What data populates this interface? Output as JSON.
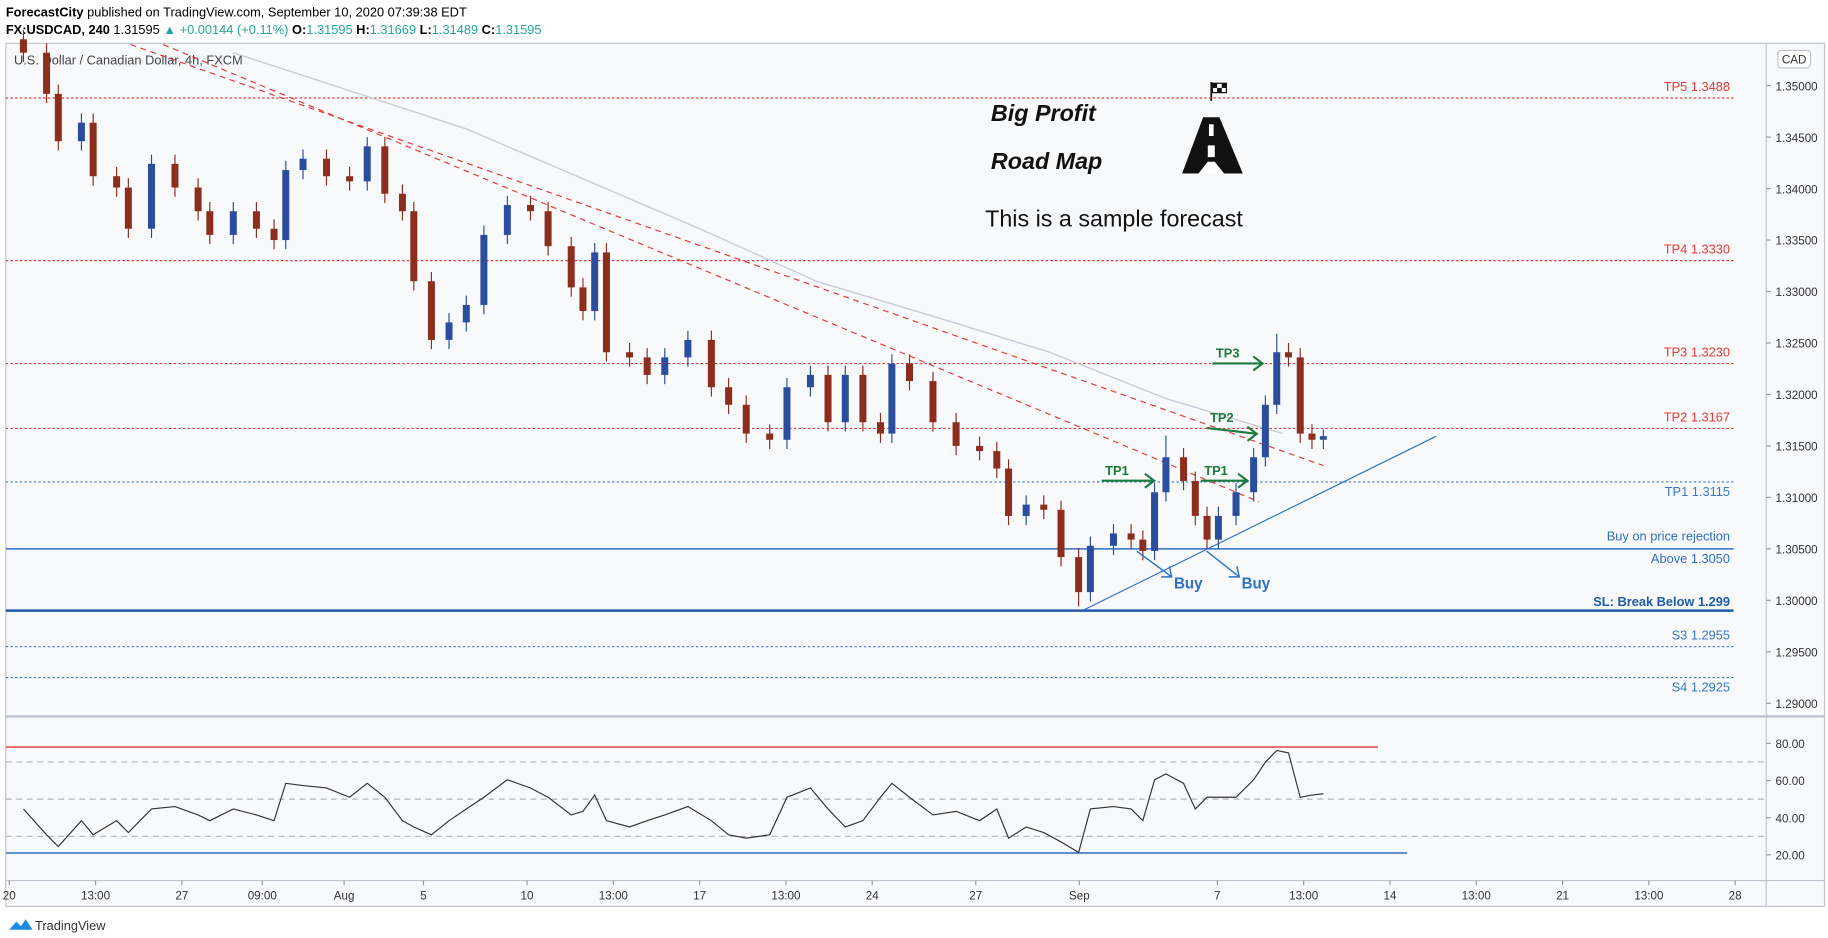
{
  "header": {
    "author": "ForecastCity",
    "published": "published on TradingView.com, September 10, 2020 07:39:38 EDT",
    "symbol": "FX:USDCAD, 240",
    "price": "1.31595",
    "change": "▲ +0.00144 (+0.11%)",
    "o_label": "O:",
    "o": "1.31595",
    "h_label": "H:",
    "h": "1.31669",
    "l_label": "L:",
    "l": "1.31489",
    "c_label": "C:",
    "c": "1.31595"
  },
  "footer": "TradingView",
  "chart_data": [
    {
      "type": "candlestick",
      "title": "U.S. Dollar / Canadian Dollar, 4h, FXCM",
      "currency": "CAD",
      "up_color": "#2b4d9e",
      "down_color": "#8c2d1e",
      "x": [
        0.41,
        1.08,
        1.42,
        2.09,
        2.43,
        3.11,
        3.45,
        4.12,
        4.8,
        5.47,
        5.81,
        6.49,
        7.16,
        7.67,
        8.01,
        8.51,
        9.19,
        9.86,
        10.37,
        10.88,
        11.39,
        11.72,
        12.23,
        12.74,
        13.24,
        13.75,
        14.43,
        15.1,
        15.61,
        16.28,
        16.62,
        16.96,
        17.3,
        17.97,
        18.48,
        18.99,
        19.66,
        20.34,
        20.84,
        21.35,
        22.03,
        22.53,
        23.21,
        23.72,
        24.22,
        24.73,
        25.24,
        25.57,
        26.08,
        26.76,
        27.43,
        28.11,
        28.61,
        28.95,
        29.46,
        29.97,
        30.47,
        30.98,
        31.32,
        31.99,
        32.5,
        32.84,
        33.18,
        33.51,
        34.02,
        34.36,
        34.7,
        35.03,
        35.54,
        36.05,
        36.39,
        36.72,
        37.06,
        37.4,
        37.74,
        38.07
      ],
      "open": [
        1.3545,
        1.3532,
        1.3492,
        1.3446,
        1.3464,
        1.3412,
        1.3401,
        1.3361,
        1.3424,
        1.3401,
        1.3378,
        1.3355,
        1.3378,
        1.3361,
        1.335,
        1.3418,
        1.3429,
        1.3412,
        1.3407,
        1.3441,
        1.3395,
        1.3378,
        1.331,
        1.3253,
        1.327,
        1.3287,
        1.3355,
        1.3384,
        1.3378,
        1.3344,
        1.3304,
        1.3281,
        1.3338,
        1.3241,
        1.3236,
        1.3219,
        1.3236,
        1.3253,
        1.3207,
        1.319,
        1.3162,
        1.3156,
        1.3207,
        1.3219,
        1.3173,
        1.3219,
        1.3173,
        1.3162,
        1.323,
        1.3213,
        1.3173,
        1.315,
        1.3145,
        1.3128,
        1.3082,
        1.3093,
        1.3088,
        1.3042,
        1.3008,
        1.3053,
        1.3065,
        1.3059,
        1.3048,
        1.3105,
        1.3139,
        1.3116,
        1.3082,
        1.3059,
        1.3082,
        1.3105,
        1.3139,
        1.319,
        1.3241,
        1.3236,
        1.3162,
        1.3156
      ],
      "high": [
        1.3554,
        1.3541,
        1.3501,
        1.3473,
        1.3473,
        1.3421,
        1.341,
        1.3433,
        1.3433,
        1.341,
        1.3387,
        1.3387,
        1.3387,
        1.337,
        1.3427,
        1.3438,
        1.3438,
        1.3421,
        1.345,
        1.345,
        1.3404,
        1.3387,
        1.3319,
        1.3279,
        1.3296,
        1.3364,
        1.3393,
        1.3393,
        1.3387,
        1.3353,
        1.3313,
        1.3347,
        1.3347,
        1.325,
        1.3245,
        1.3245,
        1.3262,
        1.3262,
        1.3216,
        1.3199,
        1.3171,
        1.3216,
        1.3228,
        1.3228,
        1.3228,
        1.3228,
        1.3182,
        1.3239,
        1.3239,
        1.3222,
        1.3182,
        1.3159,
        1.3154,
        1.3137,
        1.3102,
        1.3102,
        1.3097,
        1.3051,
        1.3062,
        1.3074,
        1.3074,
        1.3068,
        1.3114,
        1.316,
        1.3148,
        1.3125,
        1.3091,
        1.3091,
        1.3114,
        1.3148,
        1.3199,
        1.3259,
        1.325,
        1.3245,
        1.3171,
        1.3166
      ],
      "low": [
        1.3523,
        1.3483,
        1.3437,
        1.3437,
        1.3403,
        1.3392,
        1.3352,
        1.3352,
        1.3392,
        1.3369,
        1.3346,
        1.3346,
        1.3352,
        1.3341,
        1.3341,
        1.3409,
        1.3403,
        1.3398,
        1.3398,
        1.3386,
        1.3369,
        1.3301,
        1.3244,
        1.3244,
        1.3261,
        1.3278,
        1.3346,
        1.3369,
        1.3335,
        1.3295,
        1.3272,
        1.3272,
        1.3232,
        1.3227,
        1.321,
        1.321,
        1.3227,
        1.3198,
        1.3181,
        1.3153,
        1.3147,
        1.3147,
        1.3198,
        1.3164,
        1.3164,
        1.3164,
        1.3153,
        1.3153,
        1.3204,
        1.3164,
        1.3141,
        1.3136,
        1.3119,
        1.3073,
        1.3073,
        1.3079,
        1.3033,
        1.2994,
        1.2999,
        1.3044,
        1.305,
        1.3039,
        1.3039,
        1.3096,
        1.3107,
        1.3073,
        1.305,
        1.305,
        1.3073,
        1.3096,
        1.313,
        1.3181,
        1.3227,
        1.3153,
        1.3147,
        1.3147
      ],
      "close": [
        1.3532,
        1.3492,
        1.3446,
        1.3464,
        1.3412,
        1.3401,
        1.3361,
        1.3424,
        1.3401,
        1.3378,
        1.3355,
        1.3378,
        1.3361,
        1.335,
        1.3418,
        1.3429,
        1.3412,
        1.3407,
        1.3441,
        1.3395,
        1.3378,
        1.331,
        1.3253,
        1.327,
        1.3287,
        1.3355,
        1.3384,
        1.3378,
        1.3344,
        1.3304,
        1.3281,
        1.3338,
        1.3241,
        1.3236,
        1.3219,
        1.3236,
        1.3253,
        1.3207,
        1.319,
        1.3162,
        1.3156,
        1.3207,
        1.3219,
        1.3173,
        1.3219,
        1.3173,
        1.3162,
        1.323,
        1.3213,
        1.3173,
        1.315,
        1.3145,
        1.3128,
        1.3082,
        1.3093,
        1.3088,
        1.3042,
        1.3008,
        1.3053,
        1.3065,
        1.3059,
        1.3048,
        1.3105,
        1.3139,
        1.3116,
        1.3082,
        1.3059,
        1.3082,
        1.3105,
        1.3139,
        1.319,
        1.3241,
        1.3236,
        1.3162,
        1.3156,
        1.31595
      ],
      "overlay": {
        "color": "#c9cbd8",
        "x": [
          6.49,
          13.24,
          20.0,
          23.38,
          26.76,
          30.14,
          33.51,
          36.89
        ],
        "values": [
          1.3532,
          1.3458,
          1.3361,
          1.331,
          1.3276,
          1.3241,
          1.3196,
          1.3162
        ]
      },
      "levels": [
        {
          "value": 1.3488,
          "label": "TP5 1.3488",
          "color": "#e53935",
          "style": "dotted"
        },
        {
          "value": 1.333,
          "label": "TP4 1.3330",
          "color": "#e53935",
          "style": "dotted"
        },
        {
          "value": 1.323,
          "label": "TP3 1.3230",
          "color": "#e53935",
          "style": "dotted"
        },
        {
          "value": 1.3167,
          "label": "TP2 1.3167",
          "color": "#e53935",
          "style": "dotted"
        },
        {
          "value": 1.3115,
          "label": "TP1 1.3115",
          "color": "#3b78c9",
          "style": "dotted"
        },
        {
          "value": 1.305,
          "label": "Above 1.3050",
          "note": "Buy on price rejection",
          "color": "#2f6fc4",
          "style": "solid"
        },
        {
          "value": 1.299,
          "label": "SL: Break Below 1.299",
          "color": "#1e5bb0",
          "style": "thick"
        },
        {
          "value": 1.2955,
          "label": "S3 1.2955",
          "color": "#3b78c9",
          "style": "dotted"
        },
        {
          "value": 1.2925,
          "label": "S4 1.2925",
          "color": "#3b78c9",
          "style": "dotted"
        }
      ],
      "annotations": {
        "heading1": "Big Profit",
        "heading2": "Road Map",
        "note": "This is a sample forecast",
        "targets": [
          "TP1",
          "TP1",
          "TP2",
          "TP3"
        ],
        "entries": [
          "Buy",
          "Buy"
        ]
      },
      "xlim": [
        -0.1,
        50.9
      ],
      "ylim": [
        1.28884,
        1.35399
      ],
      "yticks": [
        {
          "value": 1.29,
          "label": "1.29000"
        },
        {
          "value": 1.295,
          "label": "1.29500"
        },
        {
          "value": 1.3,
          "label": "1.30000"
        },
        {
          "value": 1.305,
          "label": "1.30500"
        },
        {
          "value": 1.31,
          "label": "1.31000"
        },
        {
          "value": 1.315,
          "label": "1.31500"
        },
        {
          "value": 1.32,
          "label": "1.32000"
        },
        {
          "value": 1.325,
          "label": "1.32500"
        },
        {
          "value": 1.33,
          "label": "1.33000"
        },
        {
          "value": 1.335,
          "label": "1.33500"
        },
        {
          "value": 1.34,
          "label": "1.34000"
        },
        {
          "value": 1.345,
          "label": "1.34500"
        },
        {
          "value": 1.35,
          "label": "1.35000"
        }
      ]
    },
    {
      "type": "line",
      "color": "#333333",
      "x": [
        0.41,
        1.08,
        1.42,
        2.09,
        2.43,
        3.11,
        3.45,
        4.12,
        4.8,
        5.47,
        5.81,
        6.49,
        7.16,
        7.67,
        8.01,
        8.51,
        9.19,
        9.86,
        10.37,
        10.88,
        11.39,
        11.72,
        12.23,
        12.74,
        13.24,
        13.75,
        14.43,
        15.1,
        15.61,
        16.28,
        16.62,
        16.96,
        17.3,
        17.97,
        18.48,
        18.99,
        19.66,
        20.34,
        20.84,
        21.35,
        22.03,
        22.53,
        23.21,
        23.72,
        24.22,
        24.73,
        25.24,
        25.57,
        26.08,
        26.76,
        27.43,
        28.11,
        28.61,
        28.95,
        29.46,
        29.97,
        30.47,
        30.98,
        31.32,
        31.99,
        32.5,
        32.84,
        33.18,
        33.51,
        34.02,
        34.36,
        34.7,
        35.03,
        35.54,
        36.05,
        36.39,
        36.72,
        37.06,
        37.4,
        37.74,
        38.07
      ],
      "values": [
        44.7,
        30.8,
        24.5,
        38.4,
        30.8,
        38.4,
        32,
        44.7,
        46,
        41.5,
        38.4,
        44.7,
        41.5,
        38.4,
        58.5,
        57.3,
        56,
        51,
        58.5,
        51,
        38.4,
        35,
        30.8,
        38.4,
        44.7,
        51,
        60.4,
        56,
        51,
        41.5,
        43.4,
        52.2,
        38.4,
        35,
        38.4,
        41.5,
        46,
        38.4,
        30.8,
        29,
        30.8,
        51,
        56,
        44.7,
        35,
        38.4,
        51,
        58.5,
        51,
        41.5,
        43.4,
        38.4,
        44.7,
        29,
        35,
        32,
        27,
        21.3,
        44.7,
        46,
        44.7,
        38.4,
        60.4,
        63.6,
        58.5,
        44.7,
        51,
        51,
        51,
        60.4,
        69.9,
        76.2,
        74.9,
        51,
        52.2,
        52.9
      ],
      "levels": [
        {
          "value": 78,
          "color": "#e53935"
        },
        {
          "value": 21,
          "color": "#2f6fc4"
        }
      ],
      "guides": [
        70,
        50,
        30
      ],
      "xlim": [
        -0.1,
        50.9
      ],
      "ylim": [
        6.8,
        93.9
      ],
      "yticks": [
        {
          "value": 20,
          "label": "20.00"
        },
        {
          "value": 40,
          "label": "40.00"
        },
        {
          "value": 60,
          "label": "60.00"
        },
        {
          "value": 80,
          "label": "80.00"
        }
      ],
      "xticks": [
        {
          "value": 0,
          "label": "20"
        },
        {
          "value": 2.5,
          "label": "13:00"
        },
        {
          "value": 5,
          "label": "27"
        },
        {
          "value": 7.33,
          "label": "09:00"
        },
        {
          "value": 9.7,
          "label": "Aug"
        },
        {
          "value": 12,
          "label": "5"
        },
        {
          "value": 15,
          "label": "10"
        },
        {
          "value": 17.5,
          "label": "13:00"
        },
        {
          "value": 20,
          "label": "17"
        },
        {
          "value": 22.5,
          "label": "13:00"
        },
        {
          "value": 25,
          "label": "24"
        },
        {
          "value": 28,
          "label": "27"
        },
        {
          "value": 31,
          "label": "Sep"
        },
        {
          "value": 35,
          "label": "7"
        },
        {
          "value": 37.5,
          "label": "13:00"
        },
        {
          "value": 40,
          "label": "14"
        },
        {
          "value": 42.5,
          "label": "13:00"
        },
        {
          "value": 45,
          "label": "21"
        },
        {
          "value": 47.5,
          "label": "13:00"
        },
        {
          "value": 50,
          "label": "28"
        }
      ]
    }
  ]
}
